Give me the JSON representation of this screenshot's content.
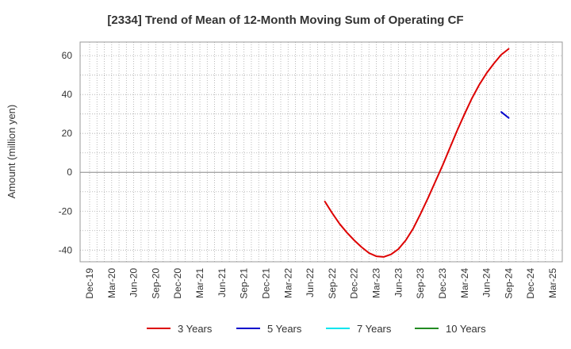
{
  "chart_data": {
    "type": "line",
    "title": "[2334]  Trend of Mean of 12-Month Moving Sum of Operating CF",
    "xlabel": "",
    "ylabel": "Amount (million yen)",
    "ylim": [
      -46,
      67
    ],
    "yticks": [
      60,
      40,
      20,
      0,
      -20,
      -40
    ],
    "x_tick_labels": [
      "Dec-19",
      "Mar-20",
      "Jun-20",
      "Sep-20",
      "Dec-20",
      "Mar-21",
      "Jun-21",
      "Sep-21",
      "Dec-21",
      "Mar-22",
      "Jun-22",
      "Sep-22",
      "Dec-22",
      "Mar-23",
      "Jun-23",
      "Sep-23",
      "Dec-23",
      "Mar-24",
      "Jun-24",
      "Sep-24",
      "Dec-24",
      "Mar-25"
    ],
    "grid": true,
    "legend_position": "bottom",
    "series": [
      {
        "name": "3 Years",
        "color": "#dd0000",
        "points": [
          [
            "Aug-22",
            -15
          ],
          [
            "Sep-22",
            -21
          ],
          [
            "Oct-22",
            -26.5
          ],
          [
            "Nov-22",
            -31
          ],
          [
            "Dec-22",
            -35
          ],
          [
            "Jan-23",
            -38.5
          ],
          [
            "Feb-23",
            -41.5
          ],
          [
            "Mar-23",
            -43.2
          ],
          [
            "Apr-23",
            -43.5
          ],
          [
            "May-23",
            -42.2
          ],
          [
            "Jun-23",
            -39.5
          ],
          [
            "Jul-23",
            -35
          ],
          [
            "Aug-23",
            -29
          ],
          [
            "Sep-23",
            -21.5
          ],
          [
            "Oct-23",
            -13.5
          ],
          [
            "Nov-23",
            -5
          ],
          [
            "Dec-23",
            3.5
          ],
          [
            "Jan-24",
            12.5
          ],
          [
            "Feb-24",
            21.5
          ],
          [
            "Mar-24",
            30
          ],
          [
            "Apr-24",
            38
          ],
          [
            "May-24",
            45
          ],
          [
            "Jun-24",
            51
          ],
          [
            "Jul-24",
            56
          ],
          [
            "Aug-24",
            60.5
          ],
          [
            "Sep-24",
            63.5
          ]
        ]
      },
      {
        "name": "5 Years",
        "color": "#0000cc",
        "points": [
          [
            "Aug-24",
            31
          ],
          [
            "Sep-24",
            28
          ]
        ]
      },
      {
        "name": "7 Years",
        "color": "#00e5ee",
        "points": []
      },
      {
        "name": "10 Years",
        "color": "#228b22",
        "points": []
      }
    ]
  }
}
